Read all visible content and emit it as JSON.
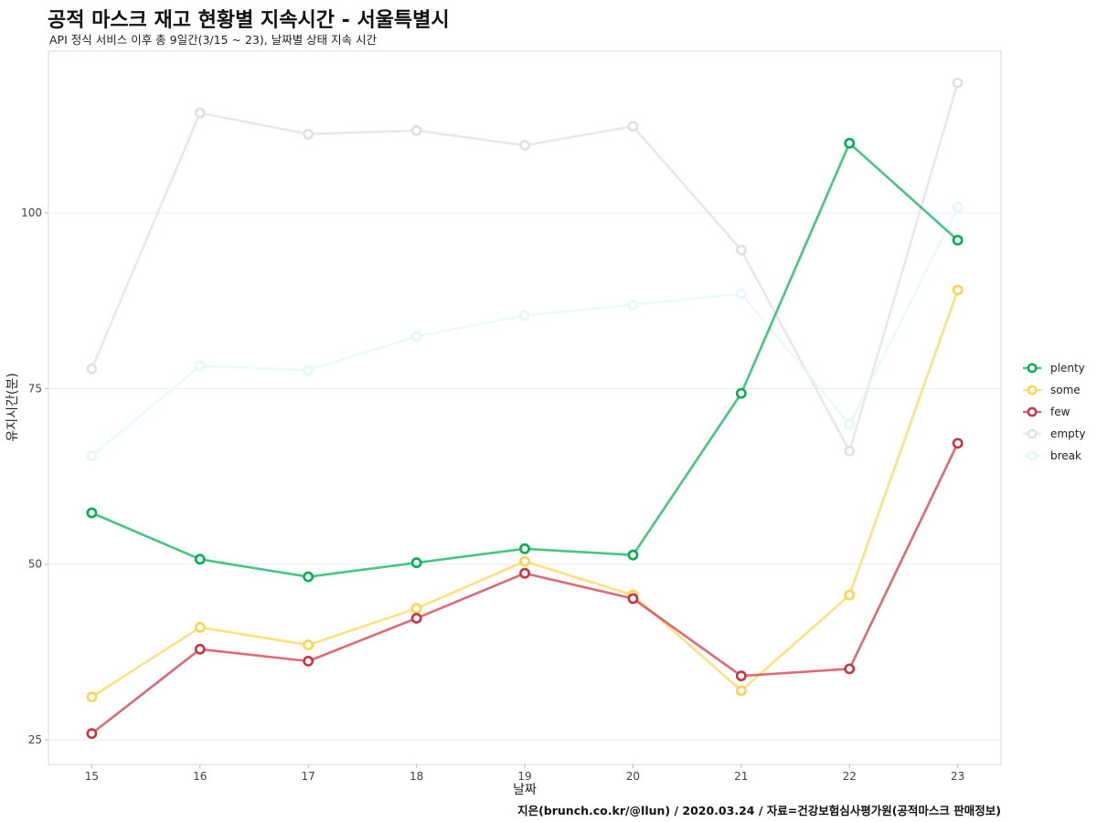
{
  "title": "공적 마스크 재고 현황별 지속시간 - 서울특별시",
  "subtitle": "API 정식 서비스 이후 총 9일간(3/15 ~ 23), 날짜별 상태 지속 시간",
  "caption": "지은(brunch.co.kr/@llun) / 2020.03.24 / 자료=건강보험심사평가원(공적마스크 판매정보)",
  "chart_data": {
    "type": "line",
    "title": "공적 마스크 재고 현황별 지속시간 - 서울특별시",
    "subtitle": "API 정식 서비스 이후 총 9일간(3/15 ~ 23), 날짜별 상태 지속 시간",
    "xlabel": "날짜",
    "ylabel": "유지시간(분)",
    "x": [
      15,
      16,
      17,
      18,
      19,
      20,
      21,
      22,
      23
    ],
    "x_ticks": [
      "15",
      "16",
      "17",
      "18",
      "19",
      "20",
      "21",
      "22",
      "23"
    ],
    "y_ticks": [
      "25",
      "50",
      "75",
      "100"
    ],
    "xlim": [
      14.6,
      23.4
    ],
    "ylim": [
      21.5,
      123
    ],
    "grid": true,
    "legend_position": "right",
    "series": [
      {
        "name": "plenty",
        "color": "#00b050",
        "values": [
          57.3,
          50.7,
          48.2,
          50.2,
          52.2,
          51.3,
          74.3,
          109.9,
          96.1
        ]
      },
      {
        "name": "some",
        "color": "#ffd34e",
        "values": [
          31.1,
          41.0,
          38.5,
          43.7,
          50.4,
          45.6,
          32.0,
          45.6,
          89.0
        ]
      },
      {
        "name": "few",
        "color": "#d03040",
        "values": [
          25.9,
          37.9,
          36.2,
          42.3,
          48.7,
          45.1,
          34.1,
          35.1,
          67.2
        ]
      },
      {
        "name": "empty",
        "color": "#e5dedd",
        "values": [
          77.8,
          114.2,
          111.2,
          111.7,
          109.6,
          112.3,
          94.7,
          66.1,
          118.5
        ]
      },
      {
        "name": "break",
        "color": "#e2f8fa",
        "values": [
          65.4,
          78.2,
          77.6,
          82.4,
          85.4,
          86.9,
          88.5,
          69.9,
          100.8
        ]
      }
    ]
  }
}
